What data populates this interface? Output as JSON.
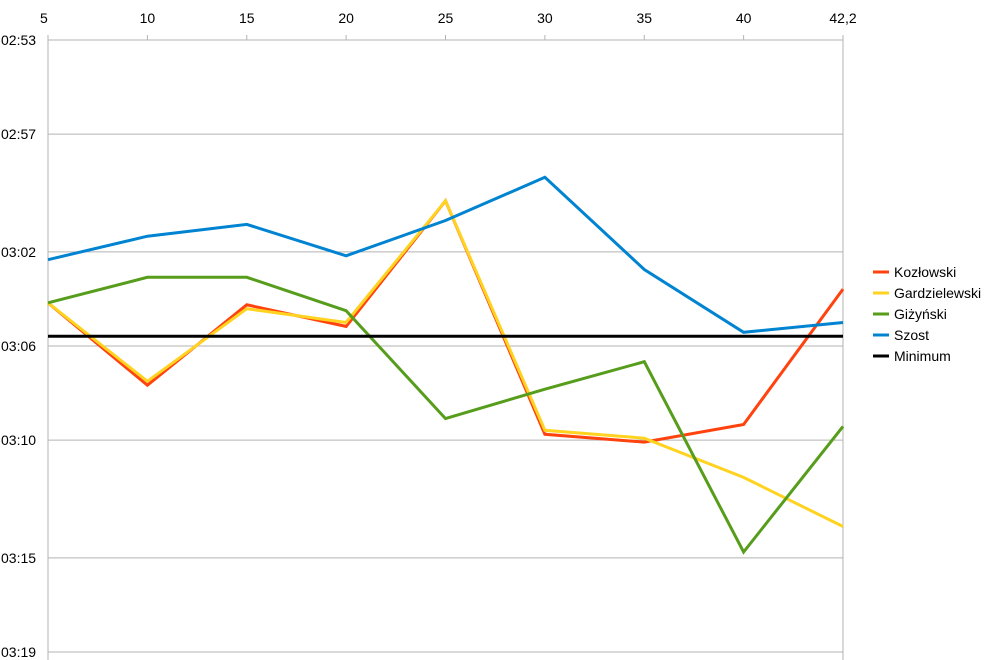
{
  "chart_data": {
    "type": "line",
    "x_positions": "top",
    "x": [
      "5",
      "10",
      "15",
      "20",
      "25",
      "30",
      "35",
      "40",
      "42,2"
    ],
    "y_axis": {
      "reversed": true,
      "min_seconds": 10380,
      "max_seconds": 11940,
      "ticks": [
        {
          "label": "02:53",
          "seconds": 10380
        },
        {
          "label": "02:57",
          "seconds": 10620
        },
        {
          "label": "03:02",
          "seconds": 10920
        },
        {
          "label": "03:06",
          "seconds": 11160
        },
        {
          "label": "03:10",
          "seconds": 11400
        },
        {
          "label": "03:15",
          "seconds": 11700
        },
        {
          "label": "03:19",
          "seconds": 11940
        }
      ],
      "gridlines": true
    },
    "legend_position": "right",
    "series": [
      {
        "name": "Kozłowski",
        "color": "#ff420e",
        "values": [
          11050,
          11260,
          11055,
          11110,
          10790,
          11385,
          11405,
          11360,
          11015
        ]
      },
      {
        "name": "Gardzielewski",
        "color": "#ffd320",
        "values": [
          11050,
          11250,
          11065,
          11100,
          10790,
          11375,
          11395,
          11495,
          11620
        ]
      },
      {
        "name": "Giżyński",
        "color": "#579d1c",
        "values": [
          11050,
          10985,
          10985,
          11070,
          11345,
          11270,
          11200,
          11685,
          11365
        ]
      },
      {
        "name": "Szost",
        "color": "#0084d1",
        "values": [
          10940,
          10880,
          10850,
          10930,
          10840,
          10730,
          10965,
          11125,
          11100
        ]
      },
      {
        "name": "Minimum",
        "color": "#000000",
        "values": [
          11135,
          11135,
          11135,
          11135,
          11135,
          11135,
          11135,
          11135,
          11135
        ]
      }
    ]
  }
}
